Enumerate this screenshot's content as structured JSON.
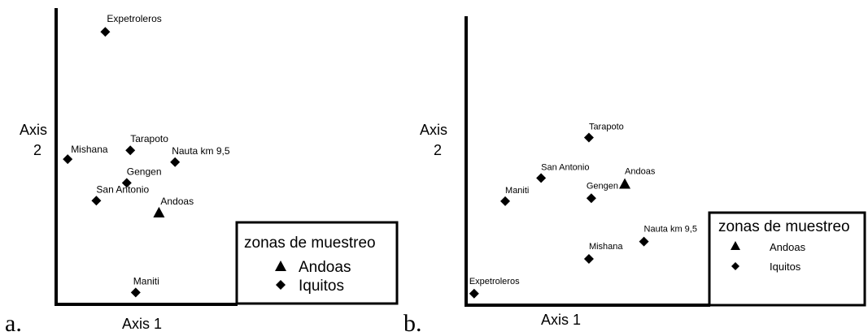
{
  "chart_data": [
    {
      "type": "scatter",
      "panel_label": "a.",
      "xlabel": "Axis 1",
      "ylabel_lines": [
        "Axis",
        "2"
      ],
      "legend": {
        "title": "zonas de muestreo",
        "entries": [
          {
            "name": "Andoas",
            "marker": "triangle"
          },
          {
            "name": "Iquitos",
            "marker": "diamond"
          }
        ],
        "position": "bottom-right"
      },
      "series": [
        {
          "name": "Andoas",
          "marker": "triangle",
          "points": [
            {
              "label": "Andoas",
              "x": 0.57,
              "y": 0.31
            }
          ]
        },
        {
          "name": "Iquitos",
          "marker": "diamond",
          "points": [
            {
              "label": "Expetroleros",
              "x": 0.27,
              "y": 0.92
            },
            {
              "label": "Mishana",
              "x": 0.06,
              "y": 0.49
            },
            {
              "label": "Tarapoto",
              "x": 0.41,
              "y": 0.52
            },
            {
              "label": "Nauta km 9,5",
              "x": 0.66,
              "y": 0.48
            },
            {
              "label": "Gengen",
              "x": 0.39,
              "y": 0.41
            },
            {
              "label": "San Antonio",
              "x": 0.22,
              "y": 0.35
            },
            {
              "label": "Maniti",
              "x": 0.44,
              "y": 0.04
            }
          ]
        }
      ]
    },
    {
      "type": "scatter",
      "panel_label": "b.",
      "xlabel": "Axis 1",
      "ylabel_lines": [
        "Axis",
        "2"
      ],
      "legend": {
        "title": "zonas de muestreo",
        "entries": [
          {
            "name": "Andoas",
            "marker": "triangle"
          },
          {
            "name": "Iquitos",
            "marker": "diamond"
          }
        ],
        "position": "bottom-right"
      },
      "series": [
        {
          "name": "Andoas",
          "marker": "triangle",
          "points": [
            {
              "label": "Andoas",
              "x": 0.66,
              "y": 0.42
            }
          ]
        },
        {
          "name": "Iquitos",
          "marker": "diamond",
          "points": [
            {
              "label": "Tarapoto",
              "x": 0.51,
              "y": 0.58
            },
            {
              "label": "San Antonio",
              "x": 0.31,
              "y": 0.44
            },
            {
              "label": "Maniti",
              "x": 0.16,
              "y": 0.36
            },
            {
              "label": "Gengen",
              "x": 0.52,
              "y": 0.37
            },
            {
              "label": "Nauta km 9,5",
              "x": 0.74,
              "y": 0.22
            },
            {
              "label": "Mishana",
              "x": 0.51,
              "y": 0.16
            },
            {
              "label": "Expetroleros",
              "x": 0.03,
              "y": 0.04
            }
          ]
        }
      ]
    }
  ]
}
